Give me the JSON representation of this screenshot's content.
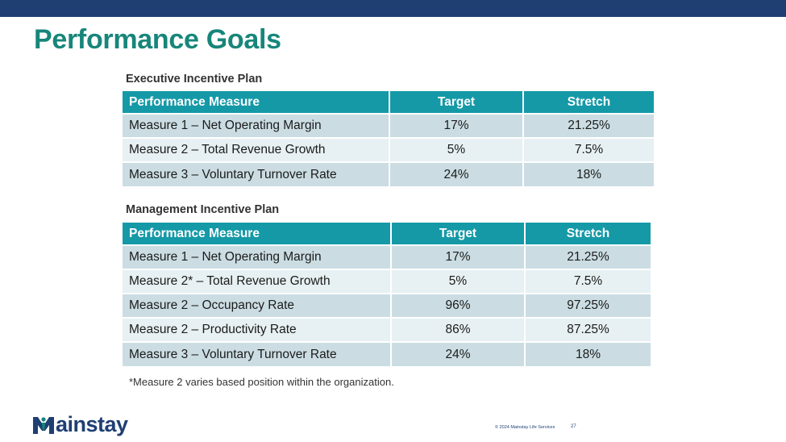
{
  "slide": {
    "title": "Performance Goals",
    "footnote": "*Measure 2 varies based position within the organization.",
    "copyright": "© 2024 Mainstay Life Services",
    "page_number": "27",
    "logo_text": "ainstay",
    "colors": {
      "top_bar": "#1f3f73",
      "title": "#17867a",
      "header_row": "#1599a7",
      "row_dark": "#cbdde3",
      "row_light": "#e7f0f2"
    }
  },
  "executive": {
    "heading": "Executive Incentive Plan",
    "columns": [
      "Performance Measure",
      "Target",
      "Stretch"
    ],
    "rows": [
      [
        "Measure 1 – Net Operating Margin",
        "17%",
        "21.25%"
      ],
      [
        "Measure 2 – Total Revenue Growth",
        "5%",
        "7.5%"
      ],
      [
        "Measure 3 – Voluntary Turnover Rate",
        "24%",
        "18%"
      ]
    ]
  },
  "management": {
    "heading": "Management Incentive Plan",
    "columns": [
      "Performance Measure",
      "Target",
      "Stretch"
    ],
    "rows": [
      [
        "Measure 1 – Net Operating Margin",
        "17%",
        "21.25%"
      ],
      [
        "Measure 2* – Total Revenue Growth",
        "5%",
        "7.5%"
      ],
      [
        "Measure 2 – Occupancy Rate",
        "96%",
        "97.25%"
      ],
      [
        "Measure 2 – Productivity Rate",
        "86%",
        "87.25%"
      ],
      [
        "Measure 3 – Voluntary Turnover Rate",
        "24%",
        "18%"
      ]
    ]
  }
}
